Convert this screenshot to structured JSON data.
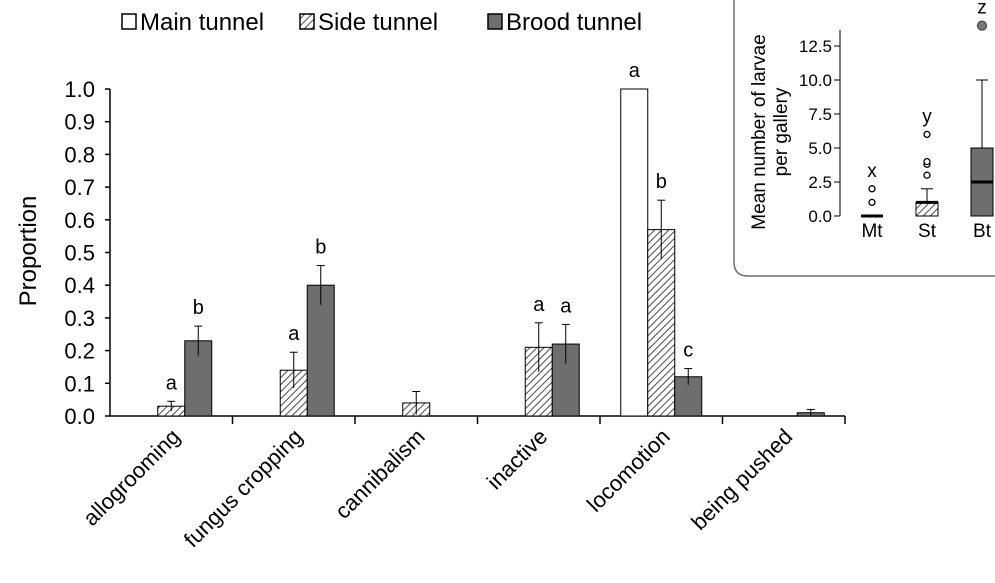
{
  "colors": {
    "main": "#ffffff",
    "side_hatch": "#4a4a4a",
    "brood": "#6e6e6e",
    "axis": "#000000",
    "inset_box": "#6e6e6e",
    "outlier_fill": "#7a7a7a"
  },
  "chart_data": [
    {
      "type": "bar",
      "ylabel": "Proportion",
      "ylim": [
        0,
        1.0
      ],
      "yticks": [
        "0.0",
        "0.1",
        "0.2",
        "0.3",
        "0.4",
        "0.5",
        "0.6",
        "0.7",
        "0.8",
        "0.9",
        "1.0"
      ],
      "legend": {
        "placement": "top",
        "entries": [
          "Main tunnel",
          "Side tunnel",
          "Brood tunnel"
        ]
      },
      "categories": [
        "allogrooming",
        "fungus cropping",
        "cannibalism",
        "inactive",
        "locomotion",
        "being pushed"
      ],
      "series": [
        {
          "name": "Main tunnel",
          "pattern": "open",
          "values": [
            0,
            0,
            0,
            0,
            1.0,
            0
          ],
          "errors": [
            0,
            0,
            0,
            0,
            0,
            0
          ],
          "letters": [
            "",
            "",
            "",
            "",
            "a",
            ""
          ]
        },
        {
          "name": "Side tunnel",
          "pattern": "hatched",
          "values": [
            0.03,
            0.14,
            0.04,
            0.21,
            0.57,
            0
          ],
          "errors": [
            0.015,
            0.055,
            0.035,
            0.075,
            0.09,
            0
          ],
          "letters": [
            "a",
            "a",
            "",
            "a",
            "b",
            ""
          ]
        },
        {
          "name": "Brood tunnel",
          "pattern": "solid",
          "values": [
            0.23,
            0.4,
            0,
            0.22,
            0.12,
            0.01
          ],
          "errors": [
            0.045,
            0.06,
            0,
            0.06,
            0.025,
            0.01
          ],
          "letters": [
            "b",
            "b",
            "",
            "a",
            "c",
            ""
          ]
        }
      ]
    },
    {
      "type": "box",
      "ylabel": "Mean number of larvae per gallery",
      "ylim": [
        0,
        15
      ],
      "yticks": [
        "0.0",
        "2.5",
        "5.0",
        "7.5",
        "10.0",
        "12.5"
      ],
      "categories": [
        "Mt",
        "St",
        "Bt"
      ],
      "boxes": [
        {
          "name": "Mt",
          "pattern": "open",
          "q1": 0,
          "median": 0,
          "q3": 0,
          "whisker_low": 0,
          "whisker_high": 0,
          "outliers": [
            1,
            2
          ],
          "letter": "x"
        },
        {
          "name": "St",
          "pattern": "hatched",
          "q1": 0,
          "median": 1,
          "q3": 1,
          "whisker_low": 0,
          "whisker_high": 2,
          "outliers": [
            3,
            3.8,
            4,
            6
          ],
          "letter": "y"
        },
        {
          "name": "Bt",
          "pattern": "solid",
          "q1": 0,
          "median": 2.5,
          "q3": 5,
          "whisker_low": 0,
          "whisker_high": 10,
          "outliers": [
            14
          ],
          "letter": "z"
        }
      ]
    }
  ]
}
